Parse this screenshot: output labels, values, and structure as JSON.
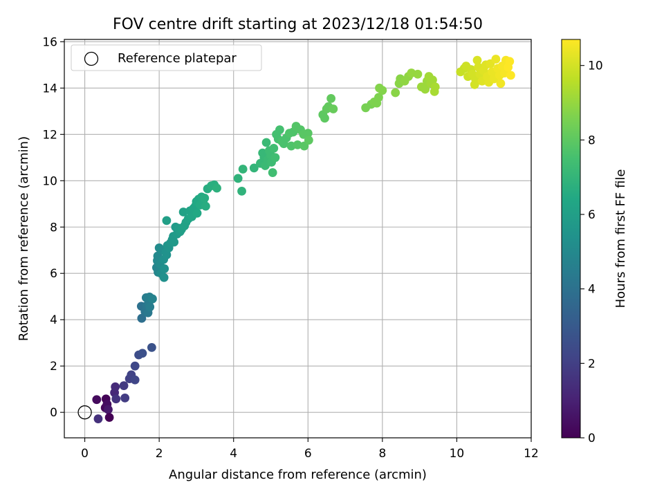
{
  "chart_data": {
    "type": "scatter",
    "title": "FOV centre drift starting at 2023/12/18 01:54:50",
    "xlabel": "Angular distance from reference (arcmin)",
    "ylabel": "Rotation from reference (arcmin)",
    "xlim": [
      -0.55,
      12
    ],
    "ylim": [
      -1.1,
      16.1
    ],
    "xticks": [
      0,
      2,
      4,
      6,
      8,
      10,
      12
    ],
    "yticks": [
      0,
      2,
      4,
      6,
      8,
      10,
      12,
      14,
      16
    ],
    "grid": true,
    "legend": {
      "position": "top-left",
      "entries": [
        "Reference platepar"
      ]
    },
    "reference_point": {
      "x": 0,
      "y": 0
    },
    "colorbar": {
      "label": "Hours from first FF file",
      "colormap": "viridis",
      "range": [
        0,
        10.7
      ],
      "ticks": [
        0,
        2,
        4,
        6,
        8,
        10
      ]
    },
    "points": [
      {
        "x": 0.32,
        "y": 0.55,
        "c": 0.3
      },
      {
        "x": 0.36,
        "y": -0.28,
        "c": 1.5
      },
      {
        "x": 0.55,
        "y": 0.2,
        "c": 0.2
      },
      {
        "x": 0.57,
        "y": 0.58,
        "c": 0.1
      },
      {
        "x": 0.6,
        "y": 0.35,
        "c": 0.4
      },
      {
        "x": 0.63,
        "y": 0.12,
        "c": 0.7
      },
      {
        "x": 0.66,
        "y": -0.22,
        "c": 0.0
      },
      {
        "x": 0.8,
        "y": 0.85,
        "c": 1.2
      },
      {
        "x": 0.82,
        "y": 1.1,
        "c": 1.3
      },
      {
        "x": 0.84,
        "y": 0.58,
        "c": 1.6
      },
      {
        "x": 1.05,
        "y": 1.15,
        "c": 1.8
      },
      {
        "x": 1.08,
        "y": 0.62,
        "c": 1.9
      },
      {
        "x": 1.2,
        "y": 1.45,
        "c": 2.0
      },
      {
        "x": 1.25,
        "y": 1.62,
        "c": 2.1
      },
      {
        "x": 1.35,
        "y": 1.4,
        "c": 2.2
      },
      {
        "x": 1.35,
        "y": 2.0,
        "c": 2.3
      },
      {
        "x": 1.45,
        "y": 2.48,
        "c": 2.5
      },
      {
        "x": 1.55,
        "y": 2.55,
        "c": 2.6
      },
      {
        "x": 1.8,
        "y": 2.8,
        "c": 2.7
      },
      {
        "x": 1.53,
        "y": 4.06,
        "c": 3.9
      },
      {
        "x": 1.52,
        "y": 4.58,
        "c": 4.0
      },
      {
        "x": 1.62,
        "y": 4.35,
        "c": 4.1
      },
      {
        "x": 1.66,
        "y": 4.6,
        "c": 4.2
      },
      {
        "x": 1.7,
        "y": 4.3,
        "c": 4.3
      },
      {
        "x": 1.72,
        "y": 4.72,
        "c": 4.4
      },
      {
        "x": 1.75,
        "y": 4.55,
        "c": 4.5
      },
      {
        "x": 1.65,
        "y": 4.95,
        "c": 4.5
      },
      {
        "x": 1.74,
        "y": 4.98,
        "c": 4.6
      },
      {
        "x": 1.82,
        "y": 4.9,
        "c": 4.7
      },
      {
        "x": 1.93,
        "y": 6.25,
        "c": 4.8
      },
      {
        "x": 1.97,
        "y": 6.05,
        "c": 4.9
      },
      {
        "x": 1.95,
        "y": 6.55,
        "c": 5.0
      },
      {
        "x": 1.96,
        "y": 6.75,
        "c": 5.0
      },
      {
        "x": 2.0,
        "y": 7.1,
        "c": 5.1
      },
      {
        "x": 2.02,
        "y": 6.4,
        "c": 5.1
      },
      {
        "x": 2.05,
        "y": 6.0,
        "c": 5.2
      },
      {
        "x": 2.08,
        "y": 7.0,
        "c": 5.2
      },
      {
        "x": 2.12,
        "y": 6.6,
        "c": 5.3
      },
      {
        "x": 2.13,
        "y": 5.82,
        "c": 5.3
      },
      {
        "x": 2.14,
        "y": 6.2,
        "c": 5.3
      },
      {
        "x": 2.18,
        "y": 6.9,
        "c": 5.4
      },
      {
        "x": 2.2,
        "y": 6.8,
        "c": 5.4
      },
      {
        "x": 2.22,
        "y": 7.2,
        "c": 5.5
      },
      {
        "x": 2.26,
        "y": 7.1,
        "c": 5.5
      },
      {
        "x": 2.3,
        "y": 7.3,
        "c": 5.6
      },
      {
        "x": 2.35,
        "y": 7.45,
        "c": 5.6
      },
      {
        "x": 2.38,
        "y": 7.6,
        "c": 5.7
      },
      {
        "x": 2.4,
        "y": 7.35,
        "c": 5.7
      },
      {
        "x": 2.44,
        "y": 8.0,
        "c": 5.8
      },
      {
        "x": 2.48,
        "y": 7.7,
        "c": 5.8
      },
      {
        "x": 2.52,
        "y": 7.95,
        "c": 5.9
      },
      {
        "x": 2.56,
        "y": 7.8,
        "c": 5.9
      },
      {
        "x": 2.6,
        "y": 7.9,
        "c": 6.0
      },
      {
        "x": 2.2,
        "y": 8.28,
        "c": 6.0
      },
      {
        "x": 2.65,
        "y": 8.65,
        "c": 6.1
      },
      {
        "x": 2.68,
        "y": 8.05,
        "c": 6.1
      },
      {
        "x": 2.72,
        "y": 8.2,
        "c": 6.1
      },
      {
        "x": 2.78,
        "y": 8.35,
        "c": 6.2
      },
      {
        "x": 2.83,
        "y": 8.7,
        "c": 6.2
      },
      {
        "x": 2.88,
        "y": 8.45,
        "c": 6.3
      },
      {
        "x": 2.92,
        "y": 8.8,
        "c": 6.3
      },
      {
        "x": 2.97,
        "y": 8.9,
        "c": 6.3
      },
      {
        "x": 3.0,
        "y": 9.1,
        "c": 6.4
      },
      {
        "x": 3.02,
        "y": 8.6,
        "c": 6.4
      },
      {
        "x": 3.06,
        "y": 9.2,
        "c": 6.4
      },
      {
        "x": 3.1,
        "y": 8.95,
        "c": 6.5
      },
      {
        "x": 3.14,
        "y": 9.3,
        "c": 6.5
      },
      {
        "x": 3.18,
        "y": 9.1,
        "c": 6.5
      },
      {
        "x": 3.22,
        "y": 9.25,
        "c": 6.6
      },
      {
        "x": 3.25,
        "y": 8.9,
        "c": 6.6
      },
      {
        "x": 3.3,
        "y": 9.65,
        "c": 6.6
      },
      {
        "x": 3.4,
        "y": 9.78,
        "c": 6.7
      },
      {
        "x": 3.48,
        "y": 9.82,
        "c": 6.7
      },
      {
        "x": 3.55,
        "y": 9.68,
        "c": 6.8
      },
      {
        "x": 4.12,
        "y": 10.1,
        "c": 6.9
      },
      {
        "x": 4.22,
        "y": 9.55,
        "c": 6.9
      },
      {
        "x": 4.25,
        "y": 10.5,
        "c": 7.0
      },
      {
        "x": 4.55,
        "y": 10.55,
        "c": 7.0
      },
      {
        "x": 4.72,
        "y": 10.75,
        "c": 7.1
      },
      {
        "x": 4.78,
        "y": 11.2,
        "c": 7.1
      },
      {
        "x": 4.82,
        "y": 11.0,
        "c": 7.1
      },
      {
        "x": 4.85,
        "y": 10.65,
        "c": 7.2
      },
      {
        "x": 4.88,
        "y": 11.65,
        "c": 7.2
      },
      {
        "x": 4.92,
        "y": 10.9,
        "c": 7.2
      },
      {
        "x": 4.96,
        "y": 11.3,
        "c": 7.3
      },
      {
        "x": 5.0,
        "y": 11.1,
        "c": 7.3
      },
      {
        "x": 5.02,
        "y": 10.8,
        "c": 7.3
      },
      {
        "x": 5.05,
        "y": 10.35,
        "c": 7.4
      },
      {
        "x": 5.08,
        "y": 11.4,
        "c": 7.4
      },
      {
        "x": 5.12,
        "y": 11.0,
        "c": 7.4
      },
      {
        "x": 5.15,
        "y": 12.0,
        "c": 7.5
      },
      {
        "x": 5.2,
        "y": 11.8,
        "c": 7.5
      },
      {
        "x": 5.24,
        "y": 12.2,
        "c": 7.5
      },
      {
        "x": 5.3,
        "y": 11.7,
        "c": 7.6
      },
      {
        "x": 5.35,
        "y": 11.6,
        "c": 7.6
      },
      {
        "x": 5.42,
        "y": 11.85,
        "c": 7.6
      },
      {
        "x": 5.5,
        "y": 12.05,
        "c": 7.7
      },
      {
        "x": 5.55,
        "y": 11.5,
        "c": 7.7
      },
      {
        "x": 5.6,
        "y": 12.1,
        "c": 7.7
      },
      {
        "x": 5.68,
        "y": 12.35,
        "c": 7.8
      },
      {
        "x": 5.72,
        "y": 11.55,
        "c": 7.8
      },
      {
        "x": 5.8,
        "y": 12.2,
        "c": 7.8
      },
      {
        "x": 5.88,
        "y": 12.0,
        "c": 7.9
      },
      {
        "x": 5.9,
        "y": 11.5,
        "c": 7.9
      },
      {
        "x": 6.0,
        "y": 12.05,
        "c": 7.9
      },
      {
        "x": 6.02,
        "y": 11.75,
        "c": 8.0
      },
      {
        "x": 6.4,
        "y": 12.85,
        "c": 8.0
      },
      {
        "x": 6.45,
        "y": 12.7,
        "c": 8.0
      },
      {
        "x": 6.5,
        "y": 13.1,
        "c": 8.1
      },
      {
        "x": 6.55,
        "y": 13.2,
        "c": 8.1
      },
      {
        "x": 6.62,
        "y": 13.55,
        "c": 8.1
      },
      {
        "x": 6.68,
        "y": 13.1,
        "c": 8.2
      },
      {
        "x": 7.55,
        "y": 13.15,
        "c": 8.5
      },
      {
        "x": 7.7,
        "y": 13.3,
        "c": 8.5
      },
      {
        "x": 7.78,
        "y": 13.4,
        "c": 8.6
      },
      {
        "x": 7.85,
        "y": 13.35,
        "c": 8.6
      },
      {
        "x": 7.9,
        "y": 13.6,
        "c": 8.6
      },
      {
        "x": 7.92,
        "y": 14.0,
        "c": 8.7
      },
      {
        "x": 8.0,
        "y": 13.9,
        "c": 8.7
      },
      {
        "x": 8.35,
        "y": 13.8,
        "c": 8.8
      },
      {
        "x": 8.45,
        "y": 14.2,
        "c": 8.8
      },
      {
        "x": 8.48,
        "y": 14.4,
        "c": 8.8
      },
      {
        "x": 8.6,
        "y": 14.3,
        "c": 8.9
      },
      {
        "x": 8.7,
        "y": 14.5,
        "c": 8.9
      },
      {
        "x": 8.78,
        "y": 14.65,
        "c": 9.0
      },
      {
        "x": 8.95,
        "y": 14.6,
        "c": 9.0
      },
      {
        "x": 9.05,
        "y": 14.05,
        "c": 9.1
      },
      {
        "x": 9.15,
        "y": 13.95,
        "c": 9.1
      },
      {
        "x": 9.2,
        "y": 14.3,
        "c": 9.1
      },
      {
        "x": 9.25,
        "y": 14.5,
        "c": 9.2
      },
      {
        "x": 9.3,
        "y": 14.2,
        "c": 9.2
      },
      {
        "x": 9.35,
        "y": 14.35,
        "c": 9.2
      },
      {
        "x": 9.4,
        "y": 13.85,
        "c": 9.3
      },
      {
        "x": 9.42,
        "y": 14.05,
        "c": 9.3
      },
      {
        "x": 10.1,
        "y": 14.7,
        "c": 9.8
      },
      {
        "x": 10.2,
        "y": 14.85,
        "c": 9.8
      },
      {
        "x": 10.25,
        "y": 14.95,
        "c": 9.9
      },
      {
        "x": 10.3,
        "y": 14.5,
        "c": 9.9
      },
      {
        "x": 10.38,
        "y": 14.8,
        "c": 9.9
      },
      {
        "x": 10.42,
        "y": 14.6,
        "c": 10.0
      },
      {
        "x": 10.48,
        "y": 14.15,
        "c": 10.0
      },
      {
        "x": 10.5,
        "y": 14.4,
        "c": 10.0
      },
      {
        "x": 10.55,
        "y": 15.2,
        "c": 10.1
      },
      {
        "x": 10.58,
        "y": 14.9,
        "c": 10.1
      },
      {
        "x": 10.62,
        "y": 14.6,
        "c": 10.1
      },
      {
        "x": 10.68,
        "y": 14.3,
        "c": 10.2
      },
      {
        "x": 10.72,
        "y": 14.75,
        "c": 10.2
      },
      {
        "x": 10.78,
        "y": 15.0,
        "c": 10.2
      },
      {
        "x": 10.82,
        "y": 14.5,
        "c": 10.3
      },
      {
        "x": 10.86,
        "y": 14.25,
        "c": 10.3
      },
      {
        "x": 10.9,
        "y": 15.05,
        "c": 10.3
      },
      {
        "x": 10.95,
        "y": 14.7,
        "c": 10.4
      },
      {
        "x": 11.0,
        "y": 14.4,
        "c": 10.4
      },
      {
        "x": 11.05,
        "y": 15.25,
        "c": 10.4
      },
      {
        "x": 11.1,
        "y": 14.85,
        "c": 10.5
      },
      {
        "x": 11.15,
        "y": 14.55,
        "c": 10.5
      },
      {
        "x": 11.18,
        "y": 14.2,
        "c": 10.5
      },
      {
        "x": 11.22,
        "y": 14.95,
        "c": 10.6
      },
      {
        "x": 11.28,
        "y": 14.65,
        "c": 10.6
      },
      {
        "x": 11.32,
        "y": 15.2,
        "c": 10.6
      },
      {
        "x": 11.38,
        "y": 14.9,
        "c": 10.7
      },
      {
        "x": 11.42,
        "y": 15.15,
        "c": 10.7
      },
      {
        "x": 11.45,
        "y": 14.55,
        "c": 10.7
      }
    ]
  }
}
